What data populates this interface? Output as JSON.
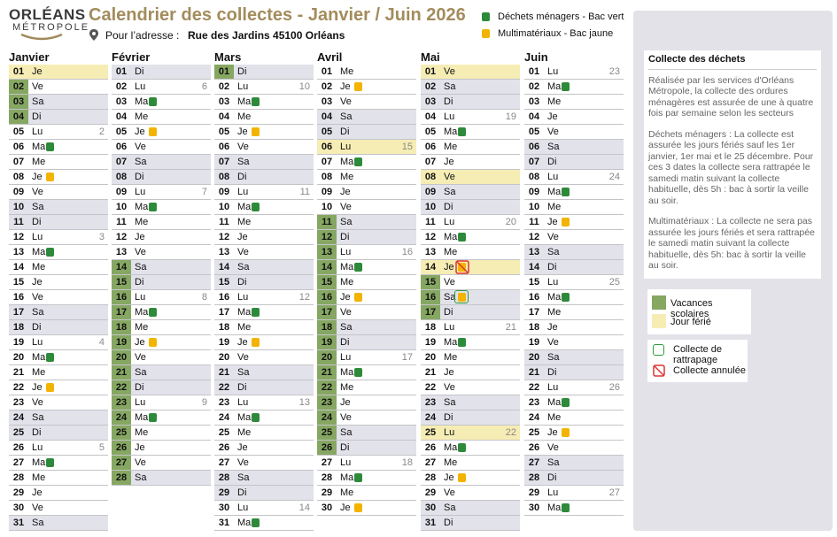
{
  "header": {
    "logo_top": "ORLÉANS",
    "logo_bottom": "MÉTROPOLE",
    "title": "Calendrier des collectes - Janvier / Juin 2026",
    "address_label": "Pour l’adresse :",
    "address": "Rue des Jardins 45100 Orléans",
    "legend_green": "Déchets ménagers - Bac vert",
    "legend_yellow": "Multimatériaux - Bac jaune"
  },
  "info": {
    "title": "Collecte des déchets",
    "paragraphs": [
      "Réalisée par les services d'Orléans Métropole, la collecte des ordures ménagères est assurée de une à quatre fois par semaine selon les secteurs",
      "Déchets ménagers : La collecte est assurée les jours fériés sauf les 1er janvier, 1er mai et le 25 décembre. Pour ces 3 dates la collecte sera rattrapée le samedi matin suivant la collecte habituelle, dès 5h : bac à sortir la veille au soir.",
      "Multimatériaux : La collecte ne sera pas assurée les jours fériés et sera rattrapée le samedi matin suivant la collecte habituelle, dès 5h: bac à sortir la veille au soir."
    ]
  },
  "legend": {
    "vacation": "Vacances scolaires",
    "holiday": "Jour férié",
    "makeup": "Collecte de rattrapage",
    "cancelled": "Collecte annulée"
  },
  "months": [
    {
      "name": "Janvier",
      "days": [
        {
          "d": "01",
          "w": "Je",
          "holiday": true
        },
        {
          "d": "02",
          "w": "Ve",
          "vac": true
        },
        {
          "d": "03",
          "w": "Sa",
          "vac": true,
          "we": true
        },
        {
          "d": "04",
          "w": "Di",
          "vac": true,
          "we": true
        },
        {
          "d": "05",
          "w": "Lu",
          "week": "2"
        },
        {
          "d": "06",
          "w": "Ma",
          "bin": "green"
        },
        {
          "d": "07",
          "w": "Me"
        },
        {
          "d": "08",
          "w": "Je",
          "bin": "yellow"
        },
        {
          "d": "09",
          "w": "Ve"
        },
        {
          "d": "10",
          "w": "Sa",
          "we": true
        },
        {
          "d": "11",
          "w": "Di",
          "we": true
        },
        {
          "d": "12",
          "w": "Lu",
          "week": "3"
        },
        {
          "d": "13",
          "w": "Ma",
          "bin": "green"
        },
        {
          "d": "14",
          "w": "Me"
        },
        {
          "d": "15",
          "w": "Je"
        },
        {
          "d": "16",
          "w": "Ve"
        },
        {
          "d": "17",
          "w": "Sa",
          "we": true
        },
        {
          "d": "18",
          "w": "Di",
          "we": true
        },
        {
          "d": "19",
          "w": "Lu",
          "week": "4"
        },
        {
          "d": "20",
          "w": "Ma",
          "bin": "green"
        },
        {
          "d": "21",
          "w": "Me"
        },
        {
          "d": "22",
          "w": "Je",
          "bin": "yellow"
        },
        {
          "d": "23",
          "w": "Ve"
        },
        {
          "d": "24",
          "w": "Sa",
          "we": true
        },
        {
          "d": "25",
          "w": "Di",
          "we": true
        },
        {
          "d": "26",
          "w": "Lu",
          "week": "5"
        },
        {
          "d": "27",
          "w": "Ma",
          "bin": "green"
        },
        {
          "d": "28",
          "w": "Me"
        },
        {
          "d": "29",
          "w": "Je"
        },
        {
          "d": "30",
          "w": "Ve"
        },
        {
          "d": "31",
          "w": "Sa",
          "we": true
        }
      ]
    },
    {
      "name": "Février",
      "days": [
        {
          "d": "01",
          "w": "Di",
          "we": true
        },
        {
          "d": "02",
          "w": "Lu",
          "week": "6"
        },
        {
          "d": "03",
          "w": "Ma",
          "bin": "green"
        },
        {
          "d": "04",
          "w": "Me"
        },
        {
          "d": "05",
          "w": "Je",
          "bin": "yellow"
        },
        {
          "d": "06",
          "w": "Ve"
        },
        {
          "d": "07",
          "w": "Sa",
          "we": true
        },
        {
          "d": "08",
          "w": "Di",
          "we": true
        },
        {
          "d": "09",
          "w": "Lu",
          "week": "7"
        },
        {
          "d": "10",
          "w": "Ma",
          "bin": "green"
        },
        {
          "d": "11",
          "w": "Me"
        },
        {
          "d": "12",
          "w": "Je"
        },
        {
          "d": "13",
          "w": "Ve"
        },
        {
          "d": "14",
          "w": "Sa",
          "vac": true,
          "we": true
        },
        {
          "d": "15",
          "w": "Di",
          "vac": true,
          "we": true
        },
        {
          "d": "16",
          "w": "Lu",
          "week": "8",
          "vac": true
        },
        {
          "d": "17",
          "w": "Ma",
          "bin": "green",
          "vac": true
        },
        {
          "d": "18",
          "w": "Me",
          "vac": true
        },
        {
          "d": "19",
          "w": "Je",
          "bin": "yellow",
          "vac": true
        },
        {
          "d": "20",
          "w": "Ve",
          "vac": true
        },
        {
          "d": "21",
          "w": "Sa",
          "vac": true,
          "we": true
        },
        {
          "d": "22",
          "w": "Di",
          "vac": true,
          "we": true
        },
        {
          "d": "23",
          "w": "Lu",
          "week": "9",
          "vac": true
        },
        {
          "d": "24",
          "w": "Ma",
          "bin": "green",
          "vac": true
        },
        {
          "d": "25",
          "w": "Me",
          "vac": true
        },
        {
          "d": "26",
          "w": "Je",
          "vac": true
        },
        {
          "d": "27",
          "w": "Ve",
          "vac": true
        },
        {
          "d": "28",
          "w": "Sa",
          "vac": true,
          "we": true
        }
      ]
    },
    {
      "name": "Mars",
      "days": [
        {
          "d": "01",
          "w": "Di",
          "vac": true,
          "we": true
        },
        {
          "d": "02",
          "w": "Lu",
          "week": "10"
        },
        {
          "d": "03",
          "w": "Ma",
          "bin": "green"
        },
        {
          "d": "04",
          "w": "Me"
        },
        {
          "d": "05",
          "w": "Je",
          "bin": "yellow"
        },
        {
          "d": "06",
          "w": "Ve"
        },
        {
          "d": "07",
          "w": "Sa",
          "we": true
        },
        {
          "d": "08",
          "w": "Di",
          "we": true
        },
        {
          "d": "09",
          "w": "Lu",
          "week": "11"
        },
        {
          "d": "10",
          "w": "Ma",
          "bin": "green"
        },
        {
          "d": "11",
          "w": "Me"
        },
        {
          "d": "12",
          "w": "Je"
        },
        {
          "d": "13",
          "w": "Ve"
        },
        {
          "d": "14",
          "w": "Sa",
          "we": true
        },
        {
          "d": "15",
          "w": "Di",
          "we": true
        },
        {
          "d": "16",
          "w": "Lu",
          "week": "12"
        },
        {
          "d": "17",
          "w": "Ma",
          "bin": "green"
        },
        {
          "d": "18",
          "w": "Me"
        },
        {
          "d": "19",
          "w": "Je",
          "bin": "yellow"
        },
        {
          "d": "20",
          "w": "Ve"
        },
        {
          "d": "21",
          "w": "Sa",
          "we": true
        },
        {
          "d": "22",
          "w": "Di",
          "we": true
        },
        {
          "d": "23",
          "w": "Lu",
          "week": "13"
        },
        {
          "d": "24",
          "w": "Ma",
          "bin": "green"
        },
        {
          "d": "25",
          "w": "Me"
        },
        {
          "d": "26",
          "w": "Je"
        },
        {
          "d": "27",
          "w": "Ve"
        },
        {
          "d": "28",
          "w": "Sa",
          "we": true
        },
        {
          "d": "29",
          "w": "Di",
          "we": true
        },
        {
          "d": "30",
          "w": "Lu",
          "week": "14"
        },
        {
          "d": "31",
          "w": "Ma",
          "bin": "green"
        }
      ]
    },
    {
      "name": "Avril",
      "days": [
        {
          "d": "01",
          "w": "Me"
        },
        {
          "d": "02",
          "w": "Je",
          "bin": "yellow"
        },
        {
          "d": "03",
          "w": "Ve"
        },
        {
          "d": "04",
          "w": "Sa",
          "we": true
        },
        {
          "d": "05",
          "w": "Di",
          "we": true
        },
        {
          "d": "06",
          "w": "Lu",
          "week": "15",
          "holiday": true
        },
        {
          "d": "07",
          "w": "Ma",
          "bin": "green"
        },
        {
          "d": "08",
          "w": "Me"
        },
        {
          "d": "09",
          "w": "Je"
        },
        {
          "d": "10",
          "w": "Ve"
        },
        {
          "d": "11",
          "w": "Sa",
          "vac": true,
          "we": true
        },
        {
          "d": "12",
          "w": "Di",
          "vac": true,
          "we": true
        },
        {
          "d": "13",
          "w": "Lu",
          "week": "16",
          "vac": true
        },
        {
          "d": "14",
          "w": "Ma",
          "bin": "green",
          "vac": true
        },
        {
          "d": "15",
          "w": "Me",
          "vac": true
        },
        {
          "d": "16",
          "w": "Je",
          "bin": "yellow",
          "vac": true
        },
        {
          "d": "17",
          "w": "Ve",
          "vac": true
        },
        {
          "d": "18",
          "w": "Sa",
          "vac": true,
          "we": true
        },
        {
          "d": "19",
          "w": "Di",
          "vac": true,
          "we": true
        },
        {
          "d": "20",
          "w": "Lu",
          "week": "17",
          "vac": true
        },
        {
          "d": "21",
          "w": "Ma",
          "bin": "green",
          "vac": true
        },
        {
          "d": "22",
          "w": "Me",
          "vac": true
        },
        {
          "d": "23",
          "w": "Je",
          "vac": true
        },
        {
          "d": "24",
          "w": "Ve",
          "vac": true
        },
        {
          "d": "25",
          "w": "Sa",
          "vac": true,
          "we": true
        },
        {
          "d": "26",
          "w": "Di",
          "vac": true,
          "we": true
        },
        {
          "d": "27",
          "w": "Lu",
          "week": "18"
        },
        {
          "d": "28",
          "w": "Ma",
          "bin": "green"
        },
        {
          "d": "29",
          "w": "Me"
        },
        {
          "d": "30",
          "w": "Je",
          "bin": "yellow"
        }
      ]
    },
    {
      "name": "Mai",
      "days": [
        {
          "d": "01",
          "w": "Ve",
          "holiday": true
        },
        {
          "d": "02",
          "w": "Sa",
          "we": true
        },
        {
          "d": "03",
          "w": "Di",
          "we": true
        },
        {
          "d": "04",
          "w": "Lu",
          "week": "19"
        },
        {
          "d": "05",
          "w": "Ma",
          "bin": "green"
        },
        {
          "d": "06",
          "w": "Me"
        },
        {
          "d": "07",
          "w": "Je"
        },
        {
          "d": "08",
          "w": "Ve",
          "holiday": true
        },
        {
          "d": "09",
          "w": "Sa",
          "we": true
        },
        {
          "d": "10",
          "w": "Di",
          "we": true
        },
        {
          "d": "11",
          "w": "Lu",
          "week": "20"
        },
        {
          "d": "12",
          "w": "Ma",
          "bin": "green"
        },
        {
          "d": "13",
          "w": "Me"
        },
        {
          "d": "14",
          "w": "Je",
          "bin": "yellow",
          "status": "cancelled",
          "holiday": true
        },
        {
          "d": "15",
          "w": "Ve",
          "vac": true
        },
        {
          "d": "16",
          "w": "Sa",
          "bin": "yellow",
          "status": "makeup",
          "vac": true,
          "we": true
        },
        {
          "d": "17",
          "w": "Di",
          "vac": true,
          "we": true
        },
        {
          "d": "18",
          "w": "Lu",
          "week": "21"
        },
        {
          "d": "19",
          "w": "Ma",
          "bin": "green"
        },
        {
          "d": "20",
          "w": "Me"
        },
        {
          "d": "21",
          "w": "Je"
        },
        {
          "d": "22",
          "w": "Ve"
        },
        {
          "d": "23",
          "w": "Sa",
          "we": true
        },
        {
          "d": "24",
          "w": "Di",
          "we": true
        },
        {
          "d": "25",
          "w": "Lu",
          "week": "22",
          "holiday": true
        },
        {
          "d": "26",
          "w": "Ma",
          "bin": "green"
        },
        {
          "d": "27",
          "w": "Me"
        },
        {
          "d": "28",
          "w": "Je",
          "bin": "yellow"
        },
        {
          "d": "29",
          "w": "Ve"
        },
        {
          "d": "30",
          "w": "Sa",
          "we": true
        },
        {
          "d": "31",
          "w": "Di",
          "we": true
        }
      ]
    },
    {
      "name": "Juin",
      "days": [
        {
          "d": "01",
          "w": "Lu",
          "week": "23"
        },
        {
          "d": "02",
          "w": "Ma",
          "bin": "green"
        },
        {
          "d": "03",
          "w": "Me"
        },
        {
          "d": "04",
          "w": "Je"
        },
        {
          "d": "05",
          "w": "Ve"
        },
        {
          "d": "06",
          "w": "Sa",
          "we": true
        },
        {
          "d": "07",
          "w": "Di",
          "we": true
        },
        {
          "d": "08",
          "w": "Lu",
          "week": "24"
        },
        {
          "d": "09",
          "w": "Ma",
          "bin": "green"
        },
        {
          "d": "10",
          "w": "Me"
        },
        {
          "d": "11",
          "w": "Je",
          "bin": "yellow"
        },
        {
          "d": "12",
          "w": "Ve"
        },
        {
          "d": "13",
          "w": "Sa",
          "we": true
        },
        {
          "d": "14",
          "w": "Di",
          "we": true
        },
        {
          "d": "15",
          "w": "Lu",
          "week": "25"
        },
        {
          "d": "16",
          "w": "Ma",
          "bin": "green"
        },
        {
          "d": "17",
          "w": "Me"
        },
        {
          "d": "18",
          "w": "Je"
        },
        {
          "d": "19",
          "w": "Ve"
        },
        {
          "d": "20",
          "w": "Sa",
          "we": true
        },
        {
          "d": "21",
          "w": "Di",
          "we": true
        },
        {
          "d": "22",
          "w": "Lu",
          "week": "26"
        },
        {
          "d": "23",
          "w": "Ma",
          "bin": "green"
        },
        {
          "d": "24",
          "w": "Me"
        },
        {
          "d": "25",
          "w": "Je",
          "bin": "yellow"
        },
        {
          "d": "26",
          "w": "Ve"
        },
        {
          "d": "27",
          "w": "Sa",
          "we": true
        },
        {
          "d": "28",
          "w": "Di",
          "we": true
        },
        {
          "d": "29",
          "w": "Lu",
          "week": "27"
        },
        {
          "d": "30",
          "w": "Ma",
          "bin": "green"
        }
      ]
    }
  ]
}
